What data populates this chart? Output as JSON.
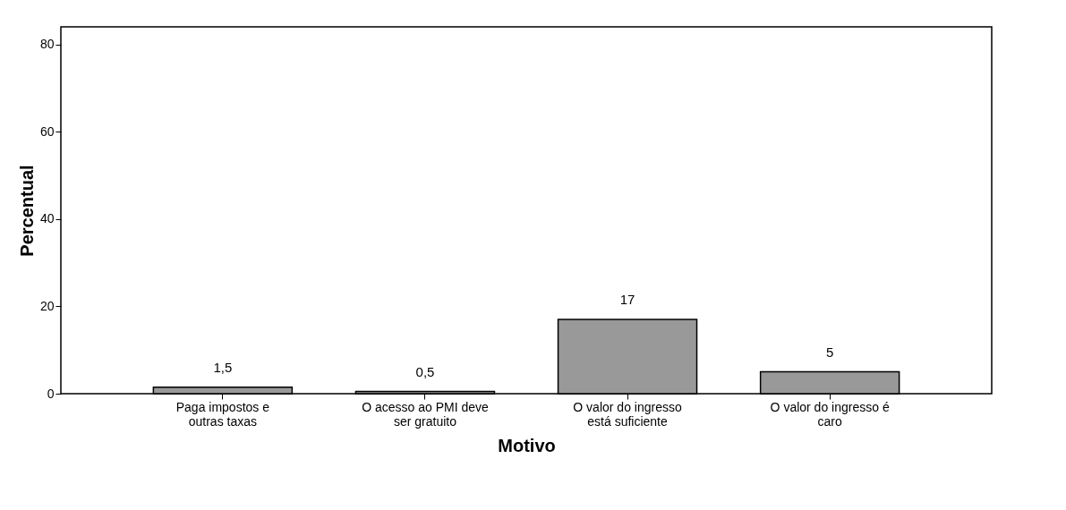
{
  "chart_data": {
    "type": "bar",
    "xlabel": "Motivo",
    "ylabel": "Percentual",
    "categories": [
      "Paga impostos e\noutras taxas",
      "O acesso ao PMI deve\nser gratuito",
      "O valor do ingresso\nestá suficiente",
      "O valor do ingresso é\ncaro"
    ],
    "values": [
      1.5,
      0.5,
      17,
      5
    ],
    "value_labels": [
      "1,5",
      "0,5",
      "17",
      "5"
    ],
    "color": "#999999",
    "ylim": [
      0,
      84
    ],
    "yticks": [
      0,
      20,
      40,
      60,
      80
    ],
    "grid": false
  }
}
